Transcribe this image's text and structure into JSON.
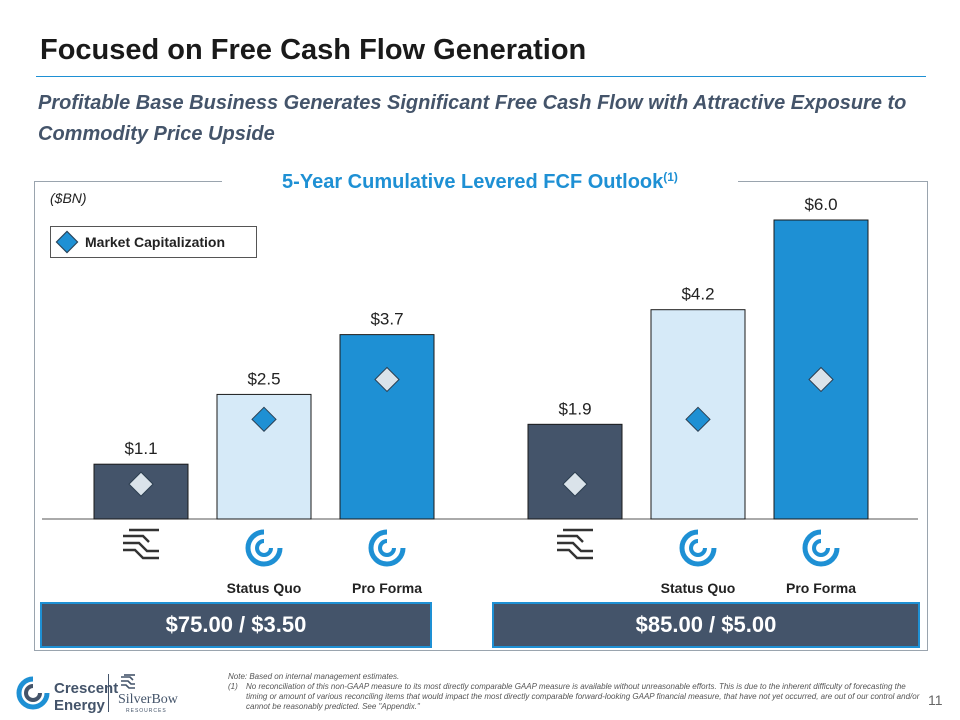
{
  "header": {
    "title": "Focused on Free Cash Flow Generation",
    "subtitle": "Profitable Base Business Generates Significant Free Cash Flow with Attractive Exposure to Commodity Price Upside"
  },
  "chart_data": {
    "type": "bar",
    "title": "5-Year Cumulative Levered FCF Outlook",
    "title_superscript": "(1)",
    "unit_label": "($BN)",
    "legend": {
      "label": "Market Capitalization",
      "marker": "diamond"
    },
    "groups": [
      {
        "price_deck": "$75.00 / $3.50",
        "bars": [
          {
            "company": "SilverBow",
            "case": "",
            "value": 1.1,
            "label": "$1.1",
            "market_cap": 0.7,
            "color": "#44546a",
            "marker_color": "#dae3ea"
          },
          {
            "company": "Crescent",
            "case": "Status Quo",
            "value": 2.5,
            "label": "$2.5",
            "market_cap": 2.0,
            "color": "#d6eaf8",
            "marker_color": "#1e90d4"
          },
          {
            "company": "Crescent",
            "case": "Pro Forma",
            "value": 3.7,
            "label": "$3.7",
            "market_cap": 2.8,
            "color": "#1e90d4",
            "marker_color": "#dae3ea"
          }
        ]
      },
      {
        "price_deck": "$85.00 / $5.00",
        "bars": [
          {
            "company": "SilverBow",
            "case": "",
            "value": 1.9,
            "label": "$1.9",
            "market_cap": 0.7,
            "color": "#44546a",
            "marker_color": "#dae3ea"
          },
          {
            "company": "Crescent",
            "case": "Status Quo",
            "value": 4.2,
            "label": "$4.2",
            "market_cap": 2.0,
            "color": "#d6eaf8",
            "marker_color": "#1e90d4"
          },
          {
            "company": "Crescent",
            "case": "Pro Forma",
            "value": 6.0,
            "label": "$6.0",
            "market_cap": 2.8,
            "color": "#1e90d4",
            "marker_color": "#dae3ea"
          }
        ]
      }
    ],
    "ylim": [
      0,
      6.0
    ]
  },
  "colors": {
    "accent": "#1e90d4",
    "dark": "#44546a",
    "light": "#d6eaf8"
  },
  "footer": {
    "note_line": "Note: Based on internal management estimates.",
    "footnote_num": "(1)",
    "footnote_text": "No reconciliation of this non-GAAP measure to its most directly comparable GAAP measure is available without unreasonable efforts. This is due to the inherent difficulty of forecasting the timing or amount of various reconciling items that would impact the most directly comparable forward-looking GAAP financial measure, that have not yet occurred, are out of our control and/or cannot be reasonably predicted. See \"Appendix.\"",
    "page_number": "11",
    "brand_crescent": "Crescent Energy",
    "brand_crescent_line1": "Crescent",
    "brand_crescent_line2": "Energy",
    "brand_silverbow": "SilverBow",
    "brand_silverbow_sub": "RESOURCES"
  }
}
